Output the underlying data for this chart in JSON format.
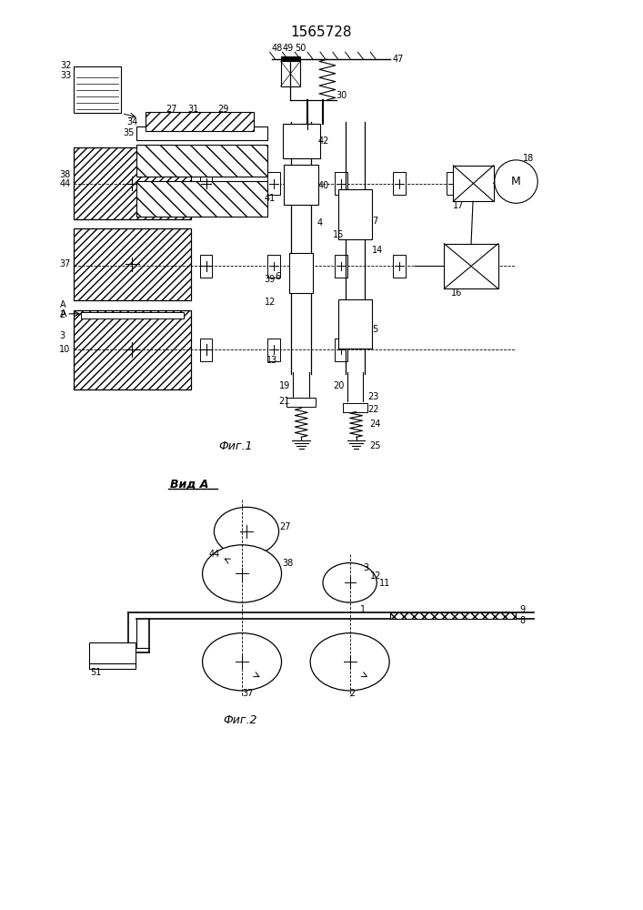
{
  "title": "1565728",
  "fig1_caption": "Фиг.1",
  "fig2_caption": "Фиг.2",
  "vid_a_label": "Вид А",
  "background_color": "#ffffff"
}
